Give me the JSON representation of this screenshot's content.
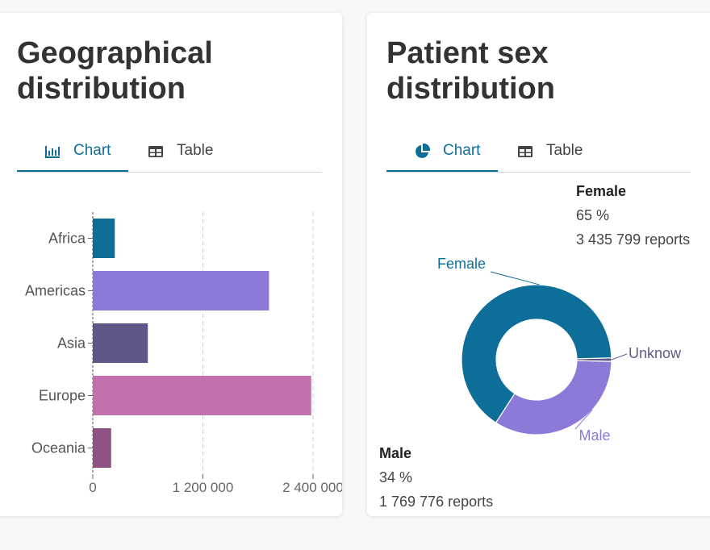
{
  "cards": [
    {
      "title": "Geographical distribution",
      "tabs": [
        {
          "label": "Chart",
          "icon": "bar-chart-icon"
        },
        {
          "label": "Table",
          "icon": "table-icon"
        }
      ],
      "active_tab": "Chart"
    },
    {
      "title": "Patient sex distribution",
      "tabs": [
        {
          "label": "Chart",
          "icon": "pie-chart-icon"
        },
        {
          "label": "Table",
          "icon": "table-icon"
        }
      ],
      "active_tab": "Chart",
      "tooltips": [
        {
          "name": "Female",
          "percent": "65 %",
          "reports": "3 435 799 reports"
        },
        {
          "name": "Male",
          "percent": "34 %",
          "reports": "1 769 776 reports"
        }
      ]
    }
  ],
  "colors": {
    "accent": "#0e6e9a"
  },
  "chart_data": [
    {
      "type": "bar",
      "orientation": "horizontal",
      "categories": [
        "Africa",
        "Americas",
        "Asia",
        "Europe",
        "Oceania"
      ],
      "values": [
        240000,
        1920000,
        600000,
        2380000,
        200000
      ],
      "colors": [
        "#0e6e9a",
        "#8c79d8",
        "#5e5889",
        "#c26fae",
        "#8e5383"
      ],
      "xticks": [
        "0",
        "1 200 000",
        "2 400 000"
      ],
      "xtick_values": [
        0,
        1200000,
        2400000
      ],
      "xlim": [
        0,
        2400000
      ],
      "grid": true
    },
    {
      "type": "pie",
      "donut": true,
      "labels": [
        "Female",
        "Male",
        "Unknow"
      ],
      "values": [
        3435799,
        1769776,
        40000
      ],
      "colors": [
        "#0e6e9a",
        "#8c79d8",
        "#5e5889"
      ]
    }
  ]
}
